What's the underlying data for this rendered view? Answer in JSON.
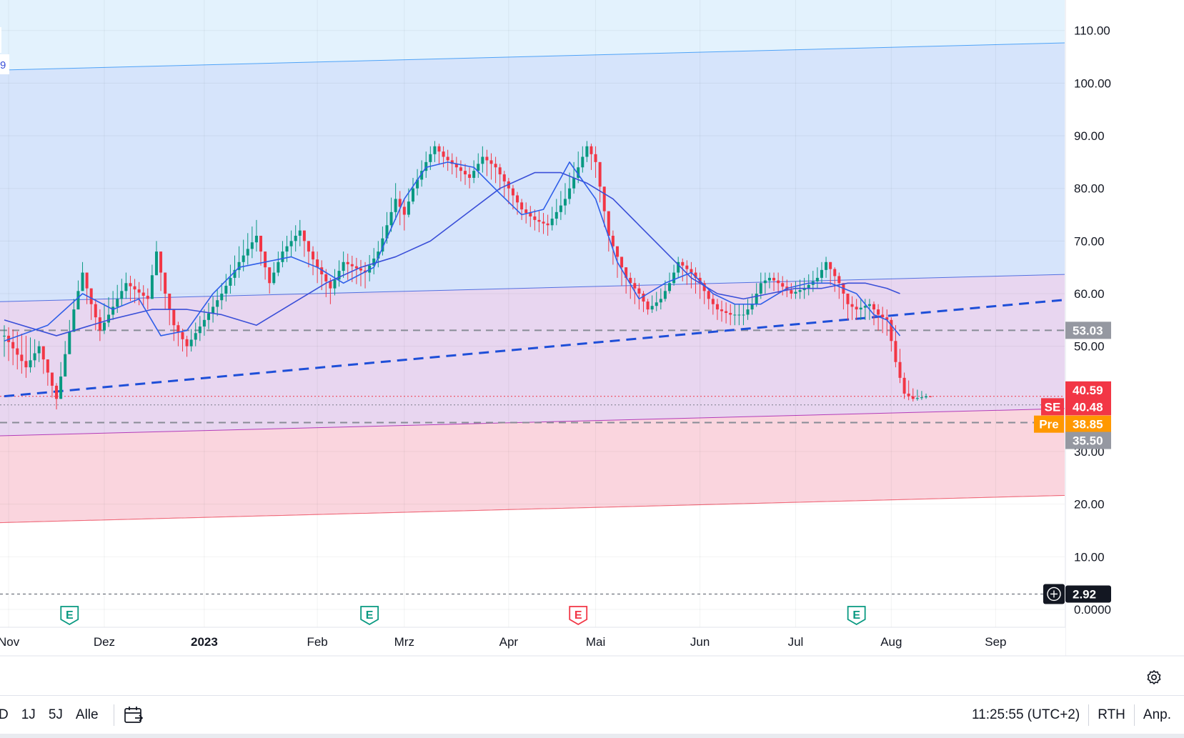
{
  "chart_data": {
    "type": "candlestick",
    "price_axis": {
      "ticks": [
        "110.00",
        "100.00",
        "90.00",
        "80.00",
        "70.00",
        "60.00",
        "50.00",
        "30.00",
        "20.00",
        "10.00",
        "0.0000"
      ],
      "tick_values": [
        110,
        100,
        90,
        80,
        70,
        60,
        50,
        30,
        20,
        10,
        0
      ],
      "range": [
        -3.4,
        115.8
      ]
    },
    "time_axis": {
      "labels": [
        "Nov",
        "Dez",
        "2023",
        "Feb",
        "Mrz",
        "Apr",
        "Mai",
        "Jun",
        "Jul",
        "Aug",
        "Sep"
      ],
      "bold": [
        false,
        false,
        true,
        false,
        false,
        false,
        false,
        false,
        false,
        false,
        false
      ],
      "positions": [
        1,
        23,
        46,
        72,
        92,
        116,
        136,
        160,
        182,
        204,
        228
      ]
    },
    "price_path": {
      "x": [
        0,
        5,
        8,
        12,
        16,
        18,
        20,
        22,
        28,
        33,
        35,
        37,
        39,
        42,
        46,
        50,
        54,
        58,
        61,
        64,
        68,
        70,
        72,
        75,
        78,
        83,
        86,
        90,
        92,
        94,
        97,
        99,
        101,
        104,
        107,
        110,
        113,
        116,
        119,
        122,
        125,
        129,
        132,
        134,
        136,
        139,
        141,
        143,
        146,
        148,
        151,
        153,
        155,
        158,
        160,
        162,
        164,
        167,
        170,
        172,
        174,
        176,
        178,
        181,
        184,
        187,
        189,
        192,
        194,
        196,
        199,
        201,
        203,
        205,
        207,
        209,
        211,
        212,
        213
      ],
      "close": [
        52,
        46,
        50,
        40,
        57,
        64,
        58,
        53,
        62,
        59,
        68,
        60,
        54,
        50,
        55,
        60,
        66,
        71,
        62,
        68,
        72,
        68,
        65,
        61,
        66,
        64,
        68,
        78,
        75,
        80,
        85,
        88,
        86,
        84,
        82,
        86,
        84,
        80,
        76,
        74,
        73,
        78,
        84,
        88,
        85,
        71,
        67,
        63,
        60,
        57,
        59,
        62,
        66,
        64,
        62,
        59,
        57,
        56,
        56,
        58,
        62,
        63,
        62,
        60,
        61,
        63,
        66,
        62,
        58,
        57,
        58,
        56,
        55,
        47,
        41,
        40,
        40.3,
        40.5,
        40.48
      ],
      "high": [
        54,
        52,
        51,
        43,
        59,
        66,
        61,
        57,
        64,
        61,
        70,
        64,
        56,
        52,
        57,
        62,
        69,
        74,
        64,
        70,
        74,
        70,
        68,
        63,
        68,
        66,
        70,
        81,
        78,
        82,
        87,
        89,
        88,
        86,
        84,
        88,
        86,
        82,
        78,
        76,
        75,
        81,
        87,
        89,
        88,
        75,
        69,
        65,
        62,
        59,
        61,
        64,
        67,
        66,
        64,
        61,
        59,
        58,
        58,
        60,
        64,
        64,
        64,
        62,
        63,
        65,
        67,
        64,
        60,
        59,
        59,
        58,
        57,
        54,
        45,
        42,
        41.5,
        41,
        40.59
      ],
      "low": [
        48,
        44,
        47,
        38,
        54,
        61,
        55,
        51,
        59,
        57,
        64,
        57,
        51,
        48,
        52,
        57,
        63,
        68,
        60,
        65,
        69,
        65,
        62,
        58,
        63,
        61,
        65,
        74,
        72,
        77,
        82,
        85,
        84,
        82,
        80,
        83,
        81,
        77,
        74,
        72,
        71,
        75,
        81,
        85,
        82,
        68,
        63,
        60,
        57,
        56,
        57,
        60,
        63,
        61,
        59,
        57,
        55,
        54,
        54,
        56,
        59,
        61,
        60,
        59,
        59,
        61,
        63,
        59,
        55,
        55,
        55,
        53,
        52,
        46,
        40,
        39.5,
        39.8,
        40,
        40.3
      ]
    },
    "ma_fast": {
      "x": [
        0,
        10,
        18,
        25,
        31,
        36,
        42,
        48,
        54,
        60,
        66,
        72,
        78,
        85,
        92,
        97,
        102,
        108,
        114,
        119,
        124,
        130,
        136,
        141,
        146,
        152,
        158,
        163,
        168,
        174,
        180,
        185,
        190,
        196,
        200,
        203,
        206
      ],
      "values": [
        51,
        54,
        60,
        57,
        59,
        52,
        53,
        60,
        65,
        66,
        67,
        65,
        62,
        65,
        78,
        84,
        85,
        84,
        79,
        75,
        76,
        85,
        78,
        66,
        59,
        62,
        64,
        60,
        58,
        58,
        61,
        62,
        62,
        60,
        56,
        55,
        52
      ]
    },
    "ma_slow": {
      "x": [
        0,
        12,
        24,
        34,
        42,
        50,
        58,
        66,
        74,
        82,
        90,
        98,
        106,
        114,
        122,
        128,
        134,
        140,
        146,
        152,
        158,
        164,
        170,
        176,
        182,
        188,
        194,
        198,
        203,
        206
      ],
      "values": [
        55,
        52,
        55,
        57,
        57,
        56,
        54,
        58,
        62,
        65,
        67,
        70,
        75,
        80,
        83,
        83,
        81,
        78,
        73,
        68,
        63,
        60,
        59,
        60,
        61,
        61,
        62,
        62,
        61,
        60
      ]
    },
    "regression_channel": {
      "anchor_start_x": 0,
      "anchor_end_x": 213,
      "center_start": 44.5,
      "center_end": 49.0,
      "offsets": [
        58,
        14,
        -11.5,
        -28
      ]
    },
    "dashed_trendline": {
      "start_x": 0,
      "start": 40.5,
      "end_x": 213,
      "end": 56.5
    },
    "horizontal_levels": [
      53.03,
      35.5
    ],
    "dotted_lines": [
      40.48,
      38.85,
      2.92
    ],
    "price_labels": [
      {
        "label": "53.03",
        "value": 53.03,
        "color": "#9598a1"
      },
      {
        "label": "40.59",
        "value": 41.7,
        "color": "#f23645"
      },
      {
        "label": "40.48",
        "value": 38.5,
        "color": "#f23645",
        "tag": "SE"
      },
      {
        "label": "38.85",
        "value": 35.2,
        "color": "#ff9800",
        "tag": "Pre"
      },
      {
        "label": "35.50",
        "value": 32.1,
        "color": "#9598a1"
      },
      {
        "label": "2.92",
        "value": 2.92,
        "color": "#131722"
      }
    ],
    "earnings_markers": [
      {
        "label": "E",
        "x": 15,
        "color": "#089981"
      },
      {
        "label": "E",
        "x": 84,
        "color": "#089981"
      },
      {
        "label": "E",
        "x": 132,
        "color": "#f23645"
      },
      {
        "label": "E",
        "x": 196,
        "color": "#089981"
      }
    ],
    "edge_label": "9"
  },
  "bottom_bar": {
    "ranges": [
      "D",
      "1J",
      "5J",
      "Alle"
    ],
    "time": "11:25:55 (UTC+2)",
    "session": "RTH",
    "scale": "Anp."
  },
  "colors": {
    "up": "#089981",
    "down": "#f23645",
    "ma": "#2962ff",
    "trend": "#1e4fd8"
  }
}
